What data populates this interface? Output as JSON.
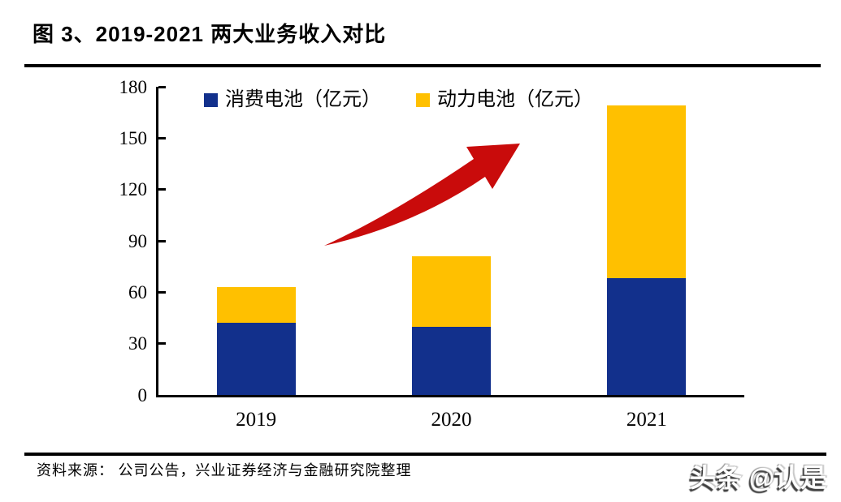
{
  "figure": {
    "title": "图 3、2019-2021 两大业务收入对比",
    "source": "资料来源： 公司公告，兴业证券经济与金融研究院整理",
    "watermark": "头条 @认是"
  },
  "colors": {
    "consumer_blue": "#12308C",
    "power_yellow": "#FFC000",
    "arrow_red": "#C90B0B",
    "axis_black": "#000000"
  },
  "chart_data": {
    "type": "bar",
    "stacked": true,
    "title": "图 3、2019-2021 两大业务收入对比",
    "categories": [
      "2019",
      "2020",
      "2021"
    ],
    "series": [
      {
        "name": "消费电池（亿元）",
        "color": "#12308C",
        "values": [
          42,
          40,
          68
        ]
      },
      {
        "name": "动力电池（亿元）",
        "color": "#FFC000",
        "values": [
          21,
          41,
          101
        ]
      }
    ],
    "totals": [
      63,
      81,
      169
    ],
    "xlabel": "",
    "ylabel": "",
    "ylim": [
      0,
      180
    ],
    "yticks": [
      0,
      30,
      60,
      90,
      120,
      150,
      180
    ],
    "grid": false,
    "legend_position": "top",
    "annotation": "upward-trend-arrow"
  }
}
